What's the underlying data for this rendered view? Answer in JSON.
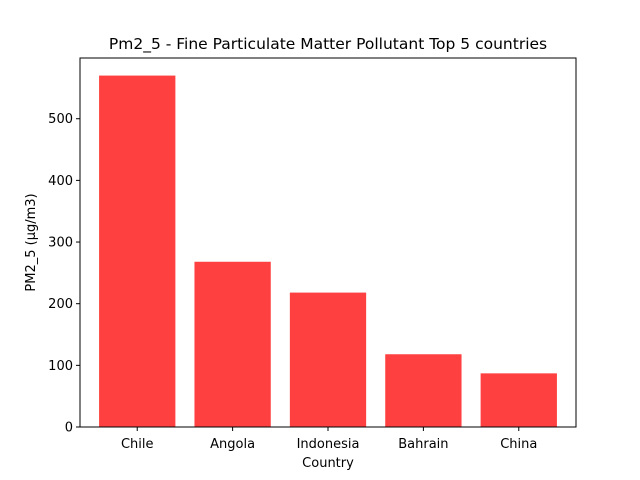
{
  "chart_data": {
    "type": "bar",
    "title": "Pm2_5 - Fine Particulate Matter Pollutant Top 5 countries",
    "xlabel": "Country",
    "ylabel": "PM2_5 (µg/m3)",
    "categories": [
      "Chile",
      "Angola",
      "Indonesia",
      "Bahrain",
      "China"
    ],
    "values": [
      570,
      268,
      218,
      118,
      87
    ],
    "ylim": [
      0,
      598.5
    ],
    "yticks": [
      0,
      100,
      200,
      300,
      400,
      500
    ],
    "bar_color": "#ff4040",
    "grid": false,
    "legend": "none"
  }
}
